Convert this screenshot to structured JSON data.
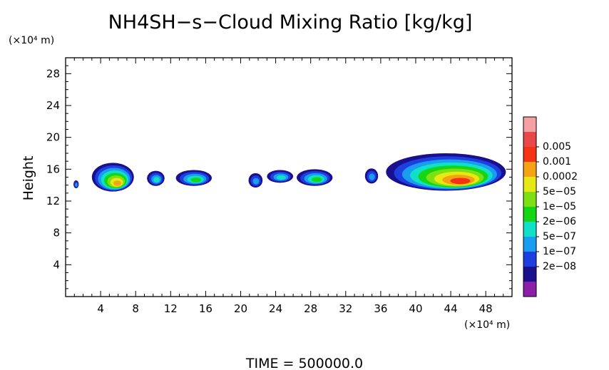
{
  "chart_data": {
    "type": "heatmap",
    "title": "NH4SH−s−Cloud Mixing Ratio [kg/kg]",
    "ylabel": "Height",
    "y_unit": "(×10⁴ m)",
    "x_unit": "(×10⁴ m)",
    "time_label": "TIME  =  500000.0",
    "xlim": [
      0,
      51
    ],
    "ylim": [
      0,
      30
    ],
    "x_ticks": [
      4,
      8,
      12,
      16,
      20,
      24,
      28,
      32,
      36,
      40,
      44,
      48
    ],
    "y_ticks": [
      4,
      8,
      12,
      16,
      20,
      24,
      28
    ],
    "grid": false,
    "legend_position": "right",
    "colorbar": {
      "labels": [
        "0.005",
        "0.001",
        "0.0002",
        "5e−05",
        "1e−05",
        "2e−06",
        "5e−07",
        "1e−07",
        "2e−08"
      ],
      "colors": [
        "#8b1fa8",
        "#1a0f8c",
        "#1e3fe0",
        "#1a9cf0",
        "#10e0c8",
        "#14d614",
        "#7ee014",
        "#e8e814",
        "#f5a314",
        "#f53214",
        "#e84848",
        "#f5a0a0"
      ]
    },
    "clouds": [
      {
        "x": [
          0.9,
          1.5
        ],
        "y": [
          13.6,
          14.6
        ],
        "max_level": 3
      },
      {
        "x": [
          3.0,
          7.8
        ],
        "y": [
          13.2,
          16.8
        ],
        "max_level": 8
      },
      {
        "x": [
          9.3,
          11.3
        ],
        "y": [
          13.9,
          15.8
        ],
        "max_level": 4
      },
      {
        "x": [
          12.6,
          16.7
        ],
        "y": [
          13.9,
          15.9
        ],
        "max_level": 5
      },
      {
        "x": [
          20.9,
          22.5
        ],
        "y": [
          13.7,
          15.5
        ],
        "max_level": 3
      },
      {
        "x": [
          23.0,
          26.0
        ],
        "y": [
          14.3,
          15.9
        ],
        "max_level": 4
      },
      {
        "x": [
          26.4,
          30.5
        ],
        "y": [
          13.9,
          16.0
        ],
        "max_level": 5
      },
      {
        "x": [
          34.2,
          35.7
        ],
        "y": [
          14.2,
          16.1
        ],
        "max_level": 3
      },
      {
        "x": [
          36.6,
          50.3
        ],
        "y": [
          13.3,
          18.0
        ],
        "max_level": 9
      }
    ]
  }
}
